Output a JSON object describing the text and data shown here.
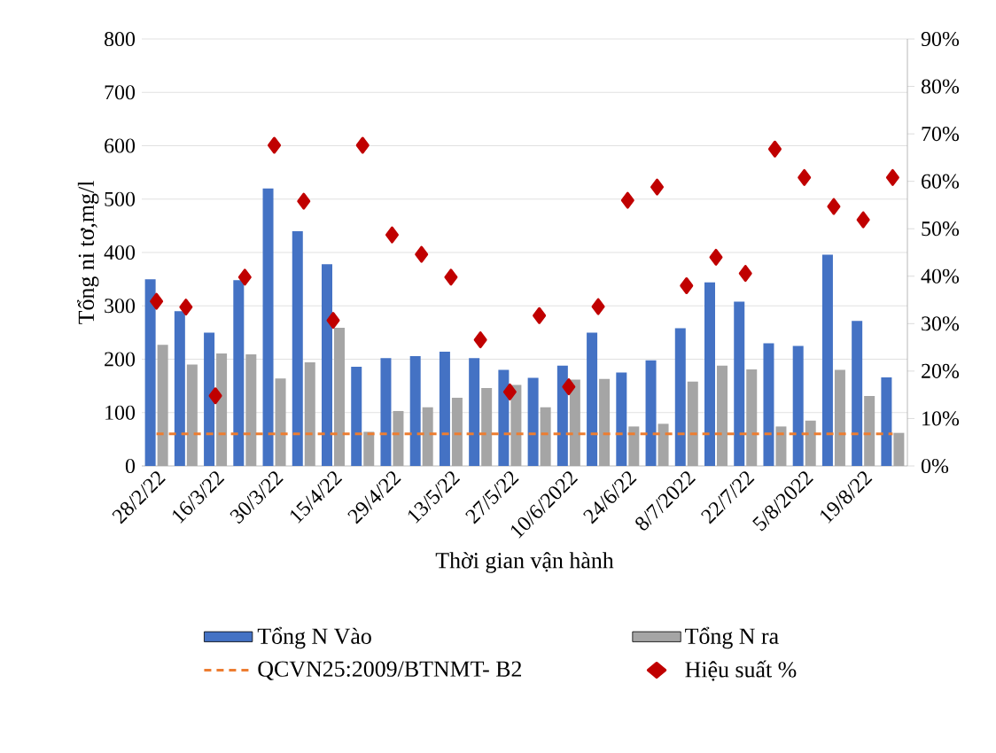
{
  "chart_data": {
    "type": "bar",
    "xlabel": "Thời gian vận hành",
    "ylabel": "Tổng ni tơ,mg/l",
    "categories": [
      "28/2/22",
      null,
      "16/3/22",
      null,
      "30/3/22",
      null,
      "15/4/22",
      null,
      "29/4/22",
      null,
      "13/5/22",
      null,
      "27/5/22",
      null,
      "10/6/2022",
      null,
      "24/6/22",
      null,
      "8/7/2022",
      null,
      "22/7/22",
      null,
      "5/8/2022",
      null,
      "19/8/22",
      null
    ],
    "series": [
      {
        "name": "Tổng N Vào",
        "color": "#4472c4",
        "values": [
          350,
          290,
          250,
          348,
          520,
          440,
          378,
          186,
          202,
          206,
          214,
          202,
          180,
          165,
          188,
          250,
          175,
          198,
          258,
          344,
          308,
          230,
          225,
          396,
          272,
          166
        ]
      },
      {
        "name": "Tổng N ra",
        "color": "#a5a5a5",
        "values": [
          227,
          190,
          211,
          209,
          164,
          194,
          259,
          64,
          103,
          110,
          128,
          146,
          152,
          110,
          162,
          163,
          74,
          79,
          158,
          188,
          181,
          74,
          85,
          180,
          131,
          62
        ]
      },
      {
        "name": "QCVN25:2009/BTNMT- B2",
        "type": "line",
        "line_style": "dashed",
        "marker": "none",
        "color": "#ed7d31",
        "values": [
          60,
          60,
          60,
          60,
          60,
          60,
          60,
          60,
          60,
          60,
          60,
          60,
          60,
          60,
          60,
          60,
          60,
          60,
          60,
          60,
          60,
          60,
          60,
          60,
          60,
          60
        ]
      },
      {
        "name": "Hiệu suất %",
        "type": "scatter",
        "axis": "y2",
        "marker": "diamond",
        "color": "#c00000",
        "values": [
          34.7,
          33.5,
          14.8,
          39.8,
          67.6,
          55.8,
          30.7,
          67.6,
          48.7,
          44.6,
          39.8,
          26.6,
          15.6,
          31.7,
          16.7,
          33.6,
          56,
          58.8,
          38,
          44,
          40.6,
          66.8,
          60.8,
          54.7,
          51.9,
          60.8
        ]
      }
    ],
    "ylim": [
      0,
      800
    ],
    "yticks": [
      0,
      100,
      200,
      300,
      400,
      500,
      600,
      700,
      800
    ],
    "y2lim": [
      0,
      90
    ],
    "y2ticks": [
      {
        "value": 0,
        "label": "0%"
      },
      {
        "value": 10,
        "label": "10%"
      },
      {
        "value": 20,
        "label": "20%"
      },
      {
        "value": 30,
        "label": "30%"
      },
      {
        "value": 40,
        "label": "40%"
      },
      {
        "value": 50,
        "label": "50%"
      },
      {
        "value": 60,
        "label": "60%"
      },
      {
        "value": 70,
        "label": "70%"
      },
      {
        "value": 80,
        "label": "80%"
      },
      {
        "value": 90,
        "label": "90%"
      }
    ],
    "grid": "y",
    "legend": "bottom"
  }
}
